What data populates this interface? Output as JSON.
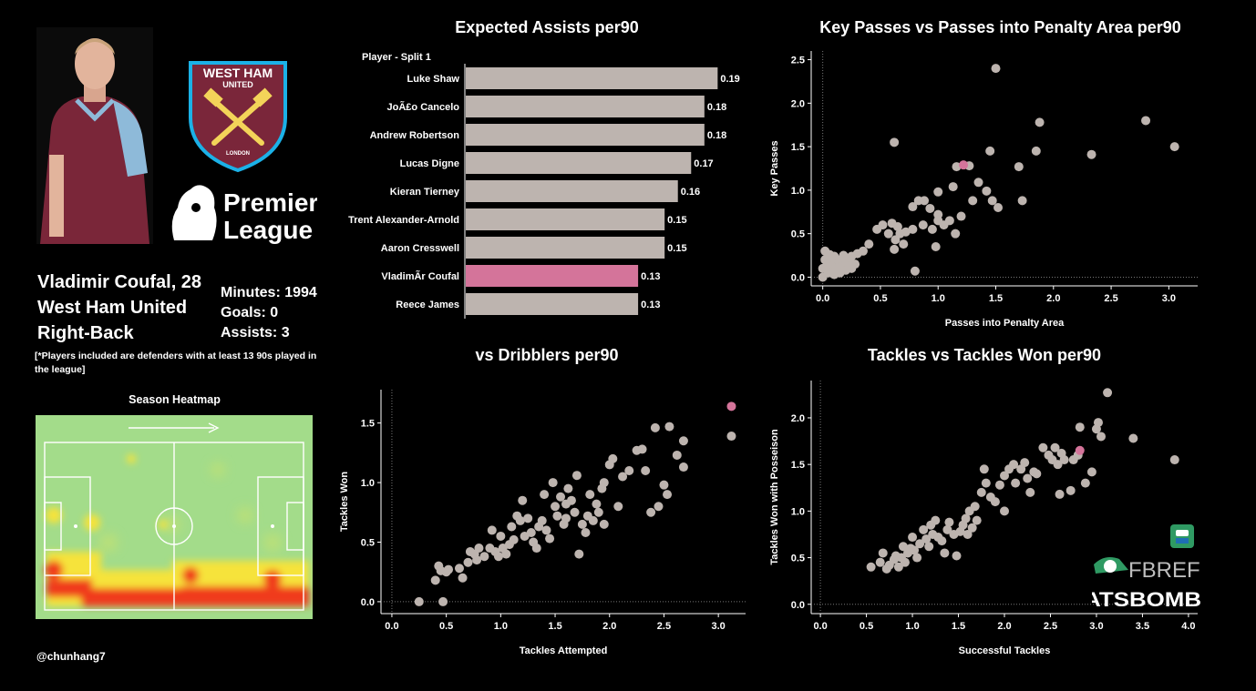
{
  "player": {
    "name_line": "Vladimir Coufal, 28",
    "club": "West Ham United",
    "position": "Right-Back",
    "minutes": "Minutes: 1994",
    "goals": "Goals: 0",
    "assists": "Assists: 3"
  },
  "crest": {
    "line1": "WEST HAM",
    "line2": "UNITED",
    "line3": "LONDON"
  },
  "league_logo": {
    "line1": "Premier",
    "line2": "League"
  },
  "note": "[*Players included are defenders with at least 13 90s played in the league]",
  "heatmap_title": "Season Heatmap",
  "handle": "@chunhang7",
  "sources": {
    "fbref": "FBREF",
    "statsbomb": "STATSBOMB"
  },
  "colors": {
    "highlight": "#d4749a",
    "base": "#bdb4af",
    "background": "#000000"
  },
  "chart_data": [
    {
      "type": "bar",
      "title": "Expected Assists per90",
      "header_label": "Player - Split 1",
      "categories": [
        "Luke Shaw",
        "JoÃ£o Cancelo",
        "Andrew Robertson",
        "Lucas Digne",
        "Kieran Tierney",
        "Trent Alexander-Arnold",
        "Aaron Cresswell",
        "VladimÃr Coufal",
        "Reece James"
      ],
      "values": [
        0.19,
        0.18,
        0.18,
        0.17,
        0.16,
        0.15,
        0.15,
        0.13,
        0.13
      ],
      "value_labels": [
        "0.19",
        "0.18",
        "0.18",
        "0.17",
        "0.16",
        "0.15",
        "0.15",
        "0.13",
        "0.13"
      ],
      "highlight_index": 7,
      "xlim": [
        0,
        0.22
      ]
    },
    {
      "type": "scatter",
      "title": "Key Passes vs Passes into Penalty Area per90",
      "xlabel": "Passes into Penalty Area",
      "ylabel": "Key Passes",
      "xlim": [
        -0.1,
        3.25
      ],
      "ylim": [
        -0.1,
        2.6
      ],
      "xticks": [
        "0.0",
        "0.5",
        "1.0",
        "1.5",
        "2.0",
        "2.5",
        "3.0"
      ],
      "yticks": [
        "0.0",
        "0.5",
        "1.0",
        "1.5",
        "2.0",
        "2.5"
      ],
      "highlight": [
        1.22,
        1.29
      ],
      "points": [
        [
          1.5,
          2.4
        ],
        [
          0.62,
          1.55
        ],
        [
          1.88,
          1.78
        ],
        [
          2.8,
          1.8
        ],
        [
          3.05,
          1.5
        ],
        [
          1.85,
          1.45
        ],
        [
          2.33,
          1.41
        ],
        [
          1.45,
          1.45
        ],
        [
          1.7,
          1.27
        ],
        [
          1.16,
          1.27
        ],
        [
          1.27,
          1.28
        ],
        [
          1.35,
          1.09
        ],
        [
          1.73,
          0.88
        ],
        [
          1.0,
          0.98
        ],
        [
          1.13,
          1.04
        ],
        [
          1.3,
          0.88
        ],
        [
          1.42,
          0.99
        ],
        [
          1.47,
          0.88
        ],
        [
          1.52,
          0.8
        ],
        [
          0.88,
          0.88
        ],
        [
          0.83,
          0.88
        ],
        [
          0.78,
          0.81
        ],
        [
          0.93,
          0.79
        ],
        [
          1.0,
          0.65
        ],
        [
          1.05,
          0.6
        ],
        [
          1.15,
          0.5
        ],
        [
          0.98,
          0.35
        ],
        [
          0.6,
          0.62
        ],
        [
          0.65,
          0.58
        ],
        [
          0.52,
          0.6
        ],
        [
          0.47,
          0.55
        ],
        [
          0.57,
          0.5
        ],
        [
          0.63,
          0.43
        ],
        [
          0.67,
          0.5
        ],
        [
          0.72,
          0.52
        ],
        [
          0.78,
          0.55
        ],
        [
          0.7,
          0.38
        ],
        [
          0.62,
          0.32
        ],
        [
          0.4,
          0.38
        ],
        [
          0.35,
          0.3
        ],
        [
          0.3,
          0.27
        ],
        [
          0.25,
          0.24
        ],
        [
          0.2,
          0.22
        ],
        [
          0.28,
          0.15
        ],
        [
          0.23,
          0.2
        ],
        [
          0.17,
          0.18
        ],
        [
          0.12,
          0.16
        ],
        [
          0.08,
          0.12
        ],
        [
          0.04,
          0.08
        ],
        [
          0.0,
          0.1
        ],
        [
          0.02,
          0.2
        ],
        [
          0.06,
          0.26
        ],
        [
          0.1,
          0.24
        ],
        [
          0.13,
          0.2
        ],
        [
          0.16,
          0.12
        ],
        [
          0.2,
          0.08
        ],
        [
          0.23,
          0.13
        ],
        [
          0.15,
          0.05
        ],
        [
          0.1,
          0.03
        ],
        [
          0.05,
          0.05
        ],
        [
          0.0,
          0.0
        ],
        [
          0.02,
          0.3
        ],
        [
          0.07,
          0.2
        ],
        [
          0.04,
          0.15
        ],
        [
          0.12,
          0.1
        ],
        [
          0.18,
          0.25
        ],
        [
          0.25,
          0.1
        ],
        [
          0.8,
          0.07
        ],
        [
          0.87,
          0.6
        ],
        [
          0.95,
          0.55
        ],
        [
          1.0,
          0.72
        ],
        [
          1.1,
          0.65
        ],
        [
          1.2,
          0.7
        ]
      ]
    },
    {
      "type": "scatter",
      "title": "vs Dribblers per90",
      "xlabel": "Tackles Attempted",
      "ylabel": "Tackles Won",
      "xlim": [
        -0.1,
        3.25
      ],
      "ylim": [
        -0.1,
        1.78
      ],
      "xticks": [
        "0.0",
        "0.5",
        "1.0",
        "1.5",
        "2.0",
        "2.5",
        "3.0"
      ],
      "yticks": [
        "0.0",
        "0.5",
        "1.0",
        "1.5"
      ],
      "highlight": [
        3.12,
        1.64
      ],
      "points": [
        [
          0.25,
          0.0
        ],
        [
          0.47,
          0.0
        ],
        [
          0.4,
          0.18
        ],
        [
          0.45,
          0.26
        ],
        [
          0.43,
          0.3
        ],
        [
          0.5,
          0.25
        ],
        [
          0.52,
          0.27
        ],
        [
          0.62,
          0.28
        ],
        [
          0.65,
          0.2
        ],
        [
          0.7,
          0.33
        ],
        [
          0.72,
          0.42
        ],
        [
          0.76,
          0.4
        ],
        [
          0.78,
          0.35
        ],
        [
          0.8,
          0.45
        ],
        [
          0.85,
          0.38
        ],
        [
          0.9,
          0.45
        ],
        [
          0.92,
          0.6
        ],
        [
          0.95,
          0.42
        ],
        [
          0.98,
          0.38
        ],
        [
          1.0,
          0.55
        ],
        [
          1.02,
          0.45
        ],
        [
          1.05,
          0.4
        ],
        [
          1.08,
          0.48
        ],
        [
          1.1,
          0.63
        ],
        [
          1.12,
          0.52
        ],
        [
          1.15,
          0.72
        ],
        [
          1.18,
          0.68
        ],
        [
          1.2,
          0.85
        ],
        [
          1.22,
          0.55
        ],
        [
          1.25,
          0.7
        ],
        [
          1.28,
          0.58
        ],
        [
          1.3,
          0.5
        ],
        [
          1.33,
          0.45
        ],
        [
          1.35,
          0.63
        ],
        [
          1.38,
          0.68
        ],
        [
          1.42,
          0.6
        ],
        [
          1.45,
          0.53
        ],
        [
          1.48,
          1.0
        ],
        [
          1.5,
          0.8
        ],
        [
          1.52,
          0.72
        ],
        [
          1.55,
          0.88
        ],
        [
          1.58,
          0.65
        ],
        [
          1.6,
          0.7
        ],
        [
          1.62,
          0.95
        ],
        [
          1.65,
          0.85
        ],
        [
          1.68,
          0.75
        ],
        [
          1.7,
          1.06
        ],
        [
          1.72,
          0.4
        ],
        [
          1.75,
          0.65
        ],
        [
          1.78,
          0.58
        ],
        [
          1.8,
          0.72
        ],
        [
          1.82,
          0.9
        ],
        [
          1.85,
          0.68
        ],
        [
          1.88,
          0.82
        ],
        [
          1.9,
          0.75
        ],
        [
          1.93,
          0.95
        ],
        [
          1.95,
          1.0
        ],
        [
          2.0,
          1.15
        ],
        [
          2.03,
          1.2
        ],
        [
          2.08,
          0.8
        ],
        [
          2.12,
          1.05
        ],
        [
          2.18,
          1.1
        ],
        [
          2.25,
          1.27
        ],
        [
          2.3,
          1.28
        ],
        [
          2.33,
          1.1
        ],
        [
          2.38,
          0.75
        ],
        [
          2.42,
          1.46
        ],
        [
          2.45,
          0.8
        ],
        [
          2.5,
          0.98
        ],
        [
          2.53,
          0.9
        ],
        [
          2.55,
          1.47
        ],
        [
          2.62,
          1.23
        ],
        [
          2.68,
          1.35
        ],
        [
          2.68,
          1.13
        ],
        [
          3.12,
          1.39
        ],
        [
          1.4,
          0.9
        ],
        [
          1.6,
          0.82
        ],
        [
          1.95,
          0.65
        ]
      ]
    },
    {
      "type": "scatter",
      "title": "Tackles vs Tackles Won per90",
      "xlabel": "Successful Tackles",
      "ylabel": "Tackles Won with Posseison",
      "xlim": [
        -0.1,
        4.1
      ],
      "ylim": [
        -0.1,
        2.4
      ],
      "xticks": [
        "0.0",
        "0.5",
        "1.0",
        "1.5",
        "2.0",
        "2.5",
        "3.0",
        "3.5",
        "4.0"
      ],
      "yticks": [
        "0.0",
        "0.5",
        "1.0",
        "1.5",
        "2.0"
      ],
      "highlight": [
        2.82,
        1.65
      ],
      "points": [
        [
          0.55,
          0.4
        ],
        [
          0.65,
          0.45
        ],
        [
          0.68,
          0.55
        ],
        [
          0.72,
          0.38
        ],
        [
          0.75,
          0.42
        ],
        [
          0.8,
          0.48
        ],
        [
          0.82,
          0.52
        ],
        [
          0.85,
          0.4
        ],
        [
          0.88,
          0.5
        ],
        [
          0.9,
          0.62
        ],
        [
          0.92,
          0.45
        ],
        [
          0.95,
          0.55
        ],
        [
          0.98,
          0.6
        ],
        [
          1.0,
          0.72
        ],
        [
          1.02,
          0.58
        ],
        [
          1.05,
          0.5
        ],
        [
          1.08,
          0.65
        ],
        [
          1.12,
          0.8
        ],
        [
          1.15,
          0.7
        ],
        [
          1.18,
          0.62
        ],
        [
          1.2,
          0.85
        ],
        [
          1.22,
          0.75
        ],
        [
          1.25,
          0.9
        ],
        [
          1.28,
          0.72
        ],
        [
          1.32,
          0.68
        ],
        [
          1.35,
          0.55
        ],
        [
          1.38,
          0.8
        ],
        [
          1.4,
          0.88
        ],
        [
          1.45,
          0.75
        ],
        [
          1.48,
          0.52
        ],
        [
          1.52,
          0.78
        ],
        [
          1.55,
          0.85
        ],
        [
          1.58,
          0.92
        ],
        [
          1.62,
          1.0
        ],
        [
          1.65,
          0.82
        ],
        [
          1.68,
          1.05
        ],
        [
          1.7,
          0.9
        ],
        [
          1.75,
          1.2
        ],
        [
          1.78,
          1.45
        ],
        [
          1.8,
          1.3
        ],
        [
          1.85,
          1.15
        ],
        [
          1.9,
          1.1
        ],
        [
          1.95,
          1.28
        ],
        [
          2.0,
          1.38
        ],
        [
          2.05,
          1.45
        ],
        [
          2.1,
          1.5
        ],
        [
          2.12,
          1.3
        ],
        [
          2.18,
          1.45
        ],
        [
          2.22,
          1.52
        ],
        [
          2.25,
          1.35
        ],
        [
          2.28,
          1.2
        ],
        [
          2.32,
          1.42
        ],
        [
          2.35,
          1.4
        ],
        [
          2.42,
          1.68
        ],
        [
          2.48,
          1.6
        ],
        [
          2.52,
          1.55
        ],
        [
          2.55,
          1.68
        ],
        [
          2.58,
          1.5
        ],
        [
          2.62,
          1.62
        ],
        [
          2.65,
          1.55
        ],
        [
          2.72,
          1.22
        ],
        [
          2.75,
          1.55
        ],
        [
          2.8,
          1.6
        ],
        [
          2.82,
          1.9
        ],
        [
          2.88,
          1.3
        ],
        [
          2.95,
          1.42
        ],
        [
          3.0,
          1.88
        ],
        [
          3.02,
          1.95
        ],
        [
          3.05,
          1.8
        ],
        [
          3.12,
          2.27
        ],
        [
          3.4,
          1.78
        ],
        [
          3.85,
          1.55
        ],
        [
          2.6,
          1.18
        ],
        [
          2.0,
          1.0
        ],
        [
          1.6,
          0.75
        ]
      ]
    }
  ]
}
